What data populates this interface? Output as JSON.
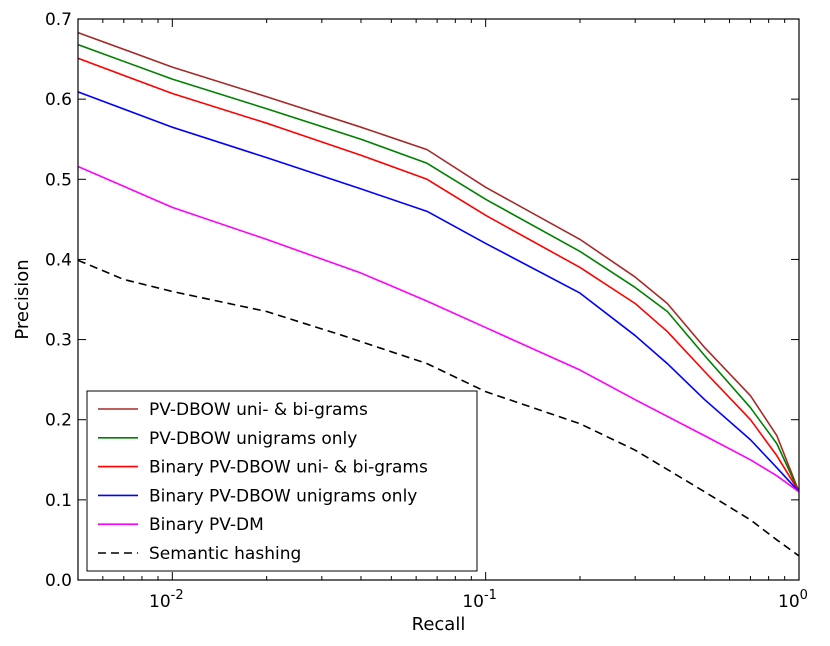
{
  "chart_data": {
    "type": "line",
    "title": "",
    "xlabel": "Recall",
    "ylabel": "Precision",
    "xscale": "log",
    "xlim": [
      0.005,
      1.0
    ],
    "ylim": [
      0.0,
      0.7
    ],
    "x_ticks": [
      {
        "value": 0.01,
        "base": "10",
        "exp": "-2"
      },
      {
        "value": 0.1,
        "base": "10",
        "exp": "-1"
      },
      {
        "value": 1.0,
        "base": "10",
        "exp": "0"
      }
    ],
    "y_ticks": [
      {
        "value": 0.0,
        "label": "0.0"
      },
      {
        "value": 0.1,
        "label": "0.1"
      },
      {
        "value": 0.2,
        "label": "0.2"
      },
      {
        "value": 0.3,
        "label": "0.3"
      },
      {
        "value": 0.4,
        "label": "0.4"
      },
      {
        "value": 0.5,
        "label": "0.5"
      },
      {
        "value": 0.6,
        "label": "0.6"
      },
      {
        "value": 0.7,
        "label": "0.7"
      }
    ],
    "grid": false,
    "legend_position": "lower-left",
    "series": [
      {
        "name": "PV-DBOW uni- & bi-grams",
        "color": "#a52a2a",
        "dash": "solid",
        "points": [
          [
            0.005,
            0.683
          ],
          [
            0.01,
            0.64
          ],
          [
            0.02,
            0.603
          ],
          [
            0.04,
            0.565
          ],
          [
            0.065,
            0.537
          ],
          [
            0.1,
            0.49
          ],
          [
            0.2,
            0.425
          ],
          [
            0.3,
            0.378
          ],
          [
            0.38,
            0.345
          ],
          [
            0.5,
            0.29
          ],
          [
            0.7,
            0.23
          ],
          [
            0.85,
            0.18
          ],
          [
            1.0,
            0.11
          ]
        ]
      },
      {
        "name": "PV-DBOW unigrams only",
        "color": "#008000",
        "dash": "solid",
        "points": [
          [
            0.005,
            0.668
          ],
          [
            0.01,
            0.625
          ],
          [
            0.02,
            0.588
          ],
          [
            0.04,
            0.55
          ],
          [
            0.065,
            0.52
          ],
          [
            0.1,
            0.475
          ],
          [
            0.2,
            0.41
          ],
          [
            0.3,
            0.365
          ],
          [
            0.38,
            0.335
          ],
          [
            0.5,
            0.28
          ],
          [
            0.7,
            0.215
          ],
          [
            0.85,
            0.17
          ],
          [
            1.0,
            0.11
          ]
        ]
      },
      {
        "name": "Binary PV-DBOW uni- & bi-grams",
        "color": "#ff0000",
        "dash": "solid",
        "points": [
          [
            0.005,
            0.651
          ],
          [
            0.01,
            0.607
          ],
          [
            0.02,
            0.57
          ],
          [
            0.04,
            0.53
          ],
          [
            0.065,
            0.5
          ],
          [
            0.1,
            0.455
          ],
          [
            0.2,
            0.39
          ],
          [
            0.3,
            0.345
          ],
          [
            0.38,
            0.31
          ],
          [
            0.5,
            0.26
          ],
          [
            0.7,
            0.2
          ],
          [
            0.85,
            0.155
          ],
          [
            1.0,
            0.11
          ]
        ]
      },
      {
        "name": "Binary PV-DBOW unigrams only",
        "color": "#0000ff",
        "dash": "solid",
        "points": [
          [
            0.005,
            0.609
          ],
          [
            0.01,
            0.565
          ],
          [
            0.02,
            0.527
          ],
          [
            0.04,
            0.488
          ],
          [
            0.065,
            0.46
          ],
          [
            0.1,
            0.42
          ],
          [
            0.2,
            0.358
          ],
          [
            0.3,
            0.305
          ],
          [
            0.38,
            0.27
          ],
          [
            0.5,
            0.225
          ],
          [
            0.7,
            0.175
          ],
          [
            0.85,
            0.14
          ],
          [
            1.0,
            0.11
          ]
        ]
      },
      {
        "name": "Binary PV-DM",
        "color": "#ff00ff",
        "dash": "solid",
        "points": [
          [
            0.005,
            0.516
          ],
          [
            0.01,
            0.465
          ],
          [
            0.02,
            0.425
          ],
          [
            0.04,
            0.383
          ],
          [
            0.065,
            0.348
          ],
          [
            0.1,
            0.315
          ],
          [
            0.2,
            0.262
          ],
          [
            0.3,
            0.225
          ],
          [
            0.5,
            0.18
          ],
          [
            0.7,
            0.15
          ],
          [
            0.85,
            0.13
          ],
          [
            1.0,
            0.11
          ]
        ]
      },
      {
        "name": "Semantic hashing",
        "color": "#000000",
        "dash": "dashed",
        "points": [
          [
            0.005,
            0.399
          ],
          [
            0.007,
            0.375
          ],
          [
            0.01,
            0.36
          ],
          [
            0.02,
            0.335
          ],
          [
            0.035,
            0.305
          ],
          [
            0.065,
            0.27
          ],
          [
            0.1,
            0.235
          ],
          [
            0.2,
            0.195
          ],
          [
            0.3,
            0.162
          ],
          [
            0.5,
            0.11
          ],
          [
            0.7,
            0.075
          ],
          [
            0.85,
            0.05
          ],
          [
            1.0,
            0.03
          ]
        ]
      }
    ]
  }
}
